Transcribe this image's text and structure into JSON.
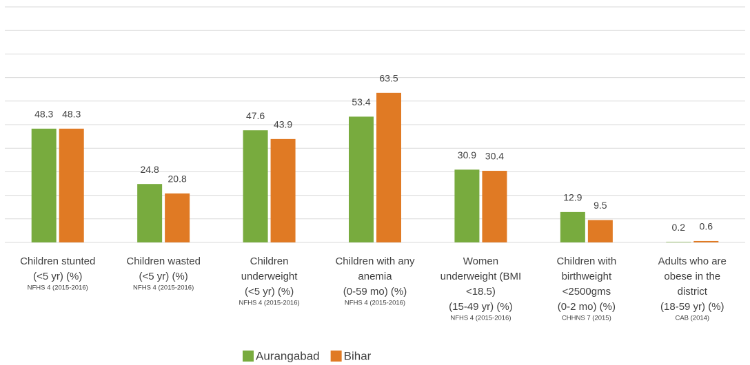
{
  "chart_data": {
    "type": "bar",
    "categories": [
      [
        "Children  stunted",
        "(<5 yr) (%)"
      ],
      [
        "Children  wasted",
        "(<5 yr) (%)"
      ],
      [
        "Children",
        "underweight",
        "(<5 yr) (%)"
      ],
      [
        "Children with any",
        "anemia",
        "(0-59 mo) (%)"
      ],
      [
        "Women",
        "underweight (BMI",
        "<18.5)",
        "(15-49 yr) (%)"
      ],
      [
        "Children with",
        "birthweight",
        "<2500gms",
        "(0-2 mo) (%)"
      ],
      [
        "Adults who are",
        "obese in the",
        "district",
        "(18-59 yr) (%)"
      ]
    ],
    "sources": [
      "NFHS 4 (2015-2016)",
      "NFHS 4 (2015-2016)",
      "NFHS 4 (2015-2016)",
      "NFHS 4 (2015-2016)",
      "NFHS 4 (2015-2016)",
      "CHHNS 7 (2015)",
      "CAB (2014)"
    ],
    "series": [
      {
        "name": "Aurangabad",
        "color": "#78ab3e",
        "values": [
          48.3,
          24.8,
          47.6,
          53.4,
          30.9,
          12.9,
          0.2
        ]
      },
      {
        "name": "Bihar",
        "color": "#e07a24",
        "values": [
          48.3,
          20.8,
          43.9,
          63.5,
          30.4,
          9.5,
          0.6
        ]
      }
    ],
    "ylim": [
      0,
      100
    ],
    "yticks": [
      0,
      10,
      20,
      30,
      40,
      50,
      60,
      70,
      80,
      90,
      100
    ],
    "grid": true,
    "legend": "bottom"
  }
}
